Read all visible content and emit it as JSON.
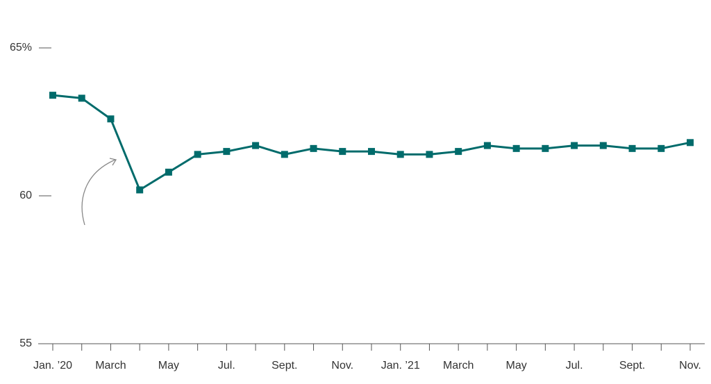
{
  "chart_data": {
    "type": "line",
    "categories": [
      "Jan. ’20",
      null,
      "March",
      null,
      "May",
      null,
      "Jul.",
      null,
      "Sept.",
      null,
      "Nov.",
      null,
      "Jan. ’21",
      null,
      "March",
      null,
      "May",
      null,
      "Jul.",
      null,
      "Sept.",
      null,
      "Nov."
    ],
    "values": [
      63.4,
      63.3,
      62.6,
      60.2,
      60.8,
      61.4,
      61.5,
      61.7,
      61.4,
      61.6,
      61.5,
      61.5,
      61.4,
      61.4,
      61.5,
      61.7,
      61.6,
      61.6,
      61.7,
      61.7,
      61.6,
      61.6,
      61.8
    ],
    "color": "#006b6b",
    "ylim": [
      55,
      65
    ],
    "yticks": [
      {
        "value": 65,
        "label": "65%"
      },
      60,
      55
    ]
  }
}
